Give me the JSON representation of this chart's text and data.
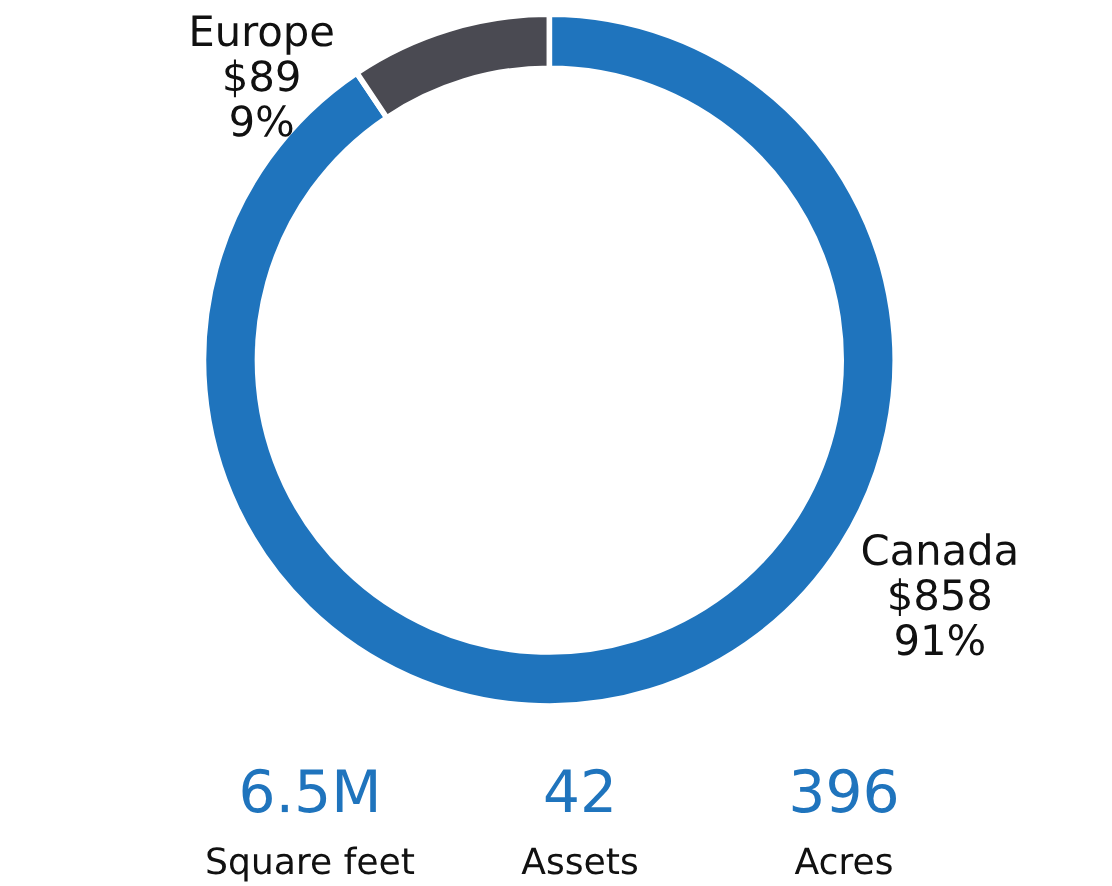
{
  "chart_data": {
    "type": "donut",
    "categories": [
      "Canada",
      "Europe"
    ],
    "values": [
      858,
      89
    ],
    "value_labels": [
      "$858\n91%",
      "$89\n9%"
    ],
    "colors": [
      "#1f74bd",
      "#4a4a52"
    ],
    "annotations": [
      "6.5M",
      "Square feet",
      "42",
      "Assets",
      "396",
      "Acres"
    ],
    "legend": false
  }
}
